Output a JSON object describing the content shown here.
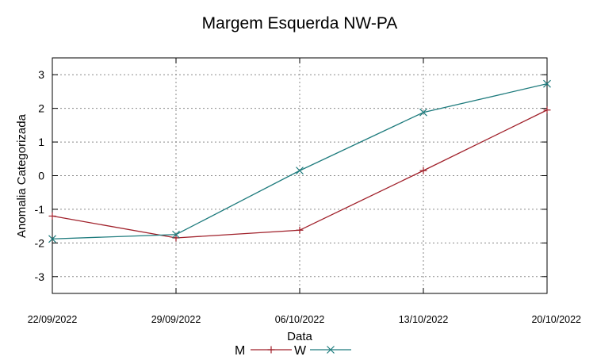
{
  "chart_data": {
    "type": "line",
    "title": "Margem Esquerda NW-PA",
    "xlabel": "Data",
    "ylabel": "Anomalia Categorizada",
    "categories": [
      "22/09/2022",
      "29/09/2022",
      "06/10/2022",
      "13/10/2022",
      "20/10/2022"
    ],
    "ylim": [
      -3.5,
      3.5
    ],
    "yticks": [
      -3,
      -2,
      -1,
      0,
      1,
      2,
      3
    ],
    "grid": true,
    "legend_position": "bottom-center",
    "series": [
      {
        "name": "M",
        "color": "#a0202a",
        "marker": "plus",
        "values": [
          -1.2,
          -1.85,
          -1.62,
          0.15,
          1.95
        ]
      },
      {
        "name": "W",
        "color": "#1e7b7d",
        "marker": "cross",
        "values": [
          -1.88,
          -1.75,
          0.15,
          1.88,
          2.73
        ]
      }
    ]
  }
}
